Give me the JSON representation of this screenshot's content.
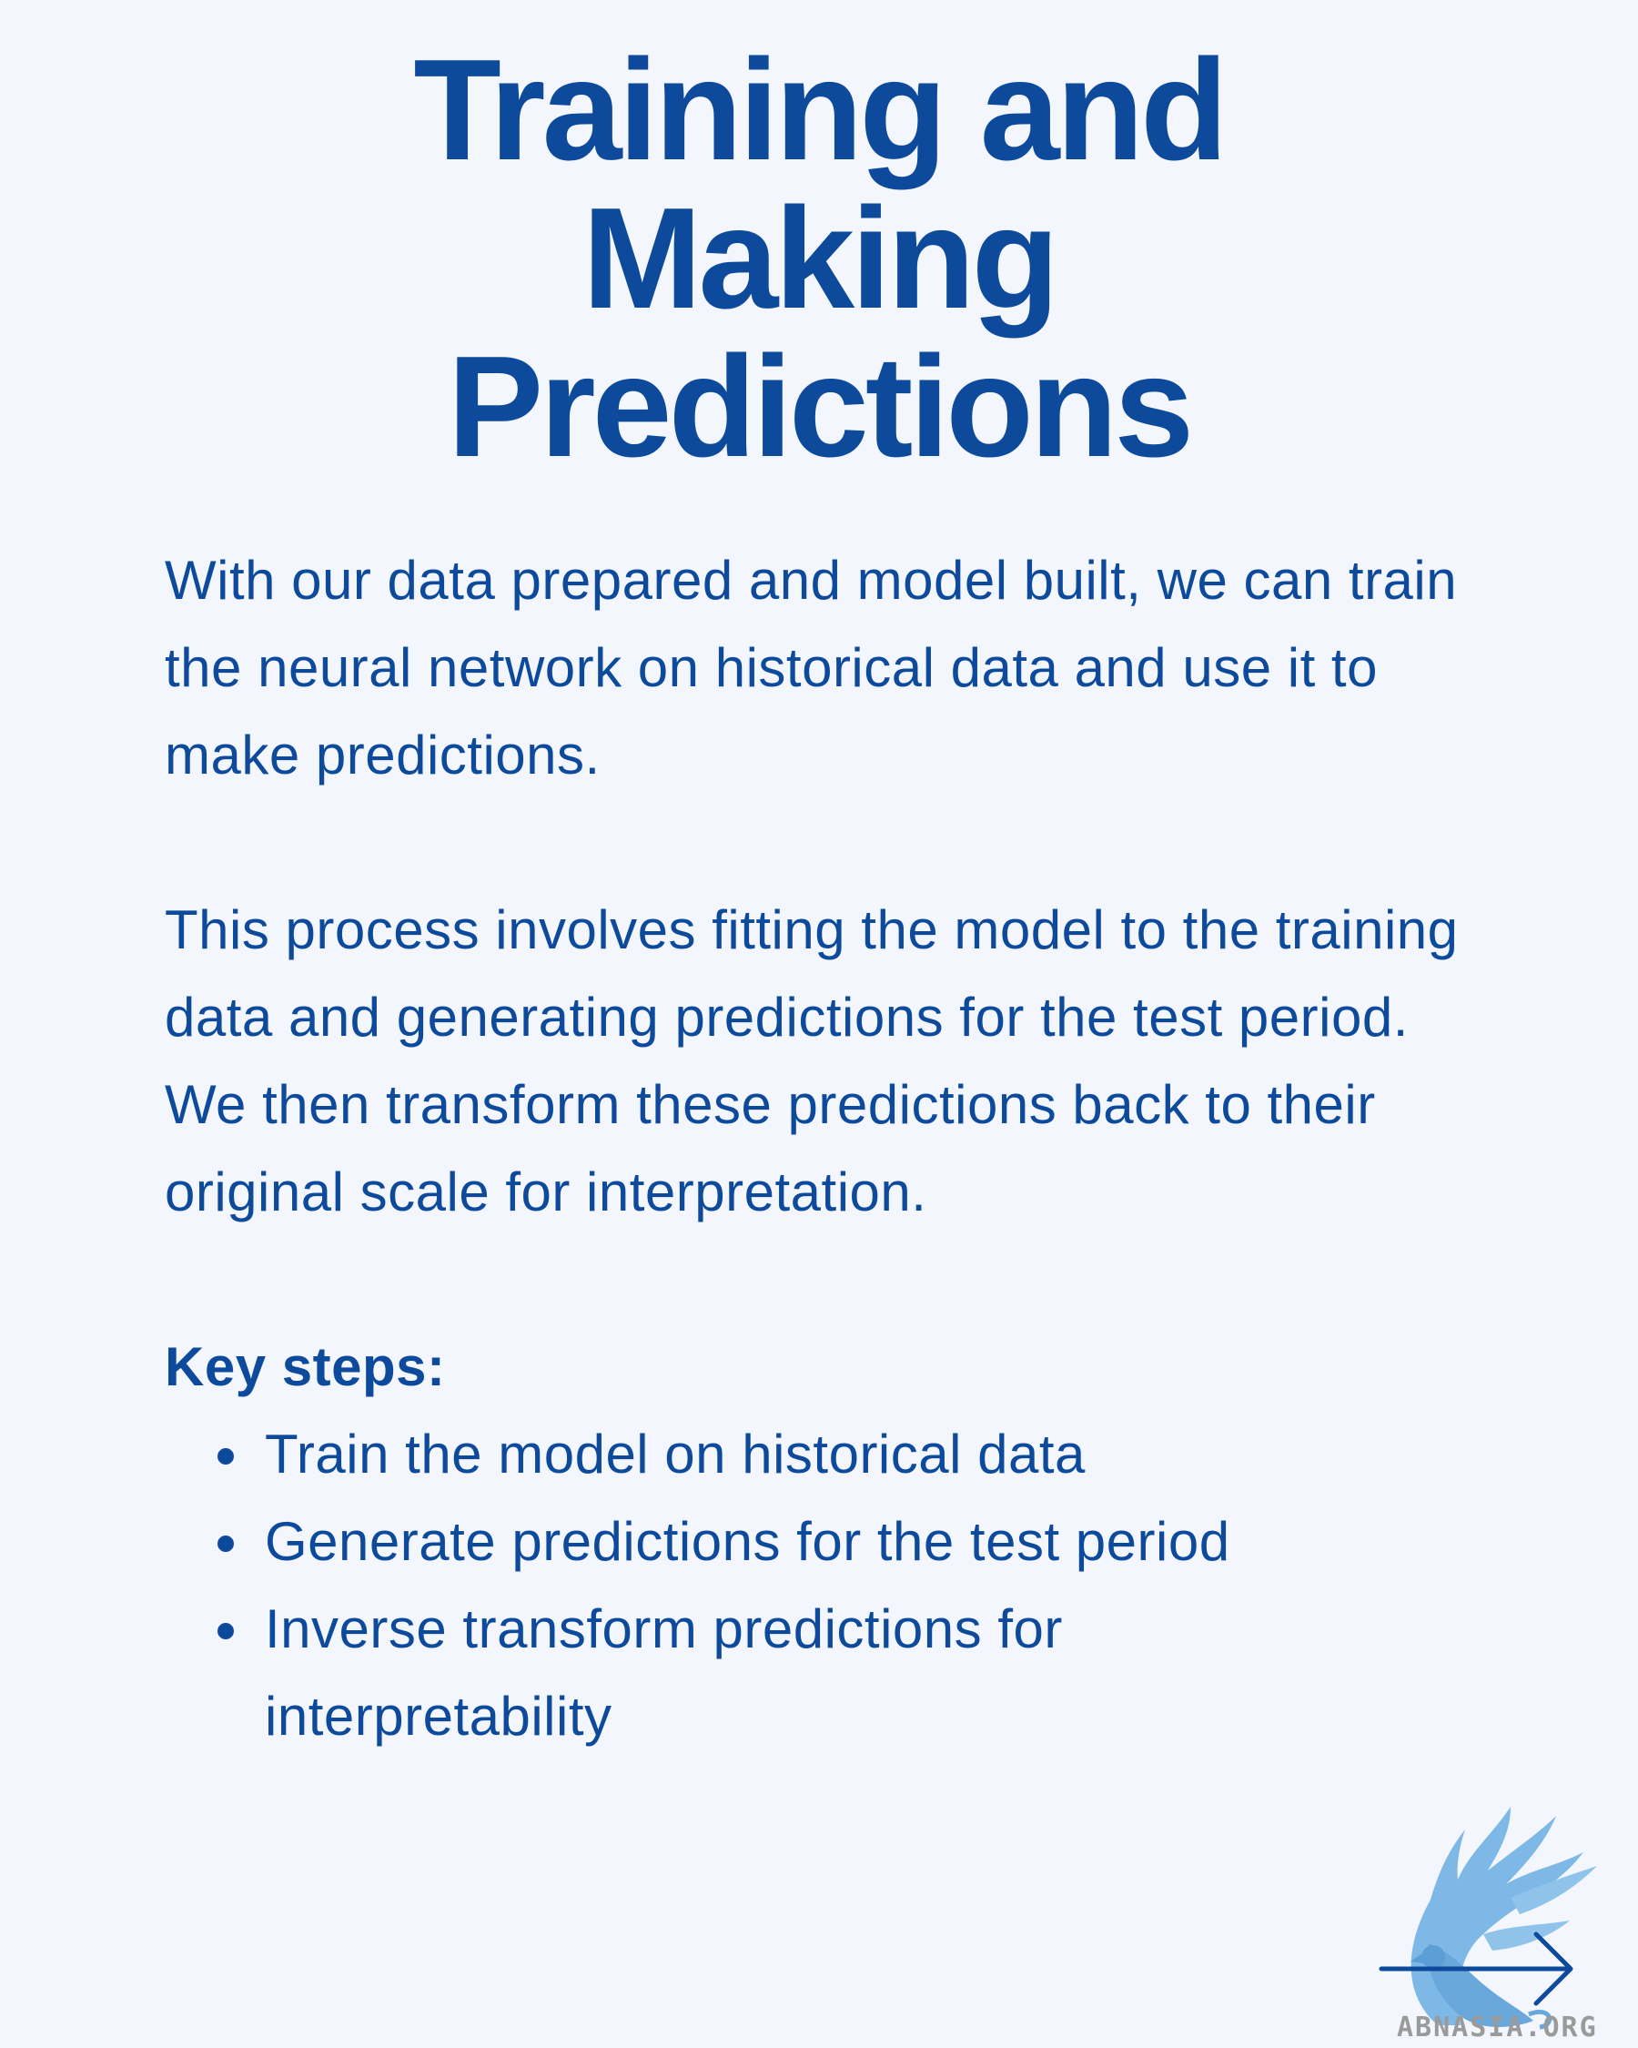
{
  "title": {
    "line1": "Training and",
    "line2": "Making",
    "line3": "Predictions"
  },
  "paragraphs": [
    "With our data prepared and model built, we can train the neural network on historical data and use it to make predictions.",
    "This process involves fitting the model to the training data and generating predictions for the test period. We then transform these predictions back to their original scale for interpretation."
  ],
  "key_steps": {
    "heading": "Key steps:",
    "items": [
      "Train the model on historical data",
      "Generate predictions for the test period",
      "Inverse transform predictions for interpretability"
    ]
  },
  "logo": {
    "text": "ABNASIA.ORG",
    "icon": "griffin-logo-icon"
  },
  "next_icon": "arrow-right-icon",
  "colors": {
    "background": "#f3f6fd",
    "text": "#0e4a9c",
    "logo_blue": "#7eb8e6",
    "logo_text": "#9a9a9a"
  }
}
